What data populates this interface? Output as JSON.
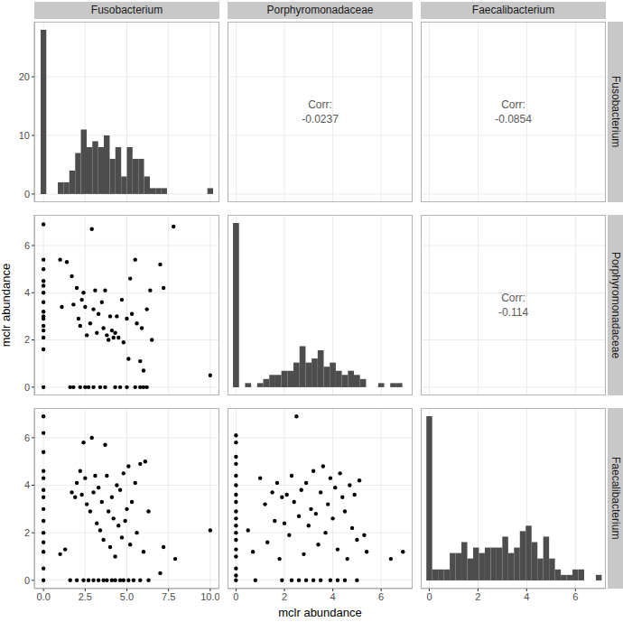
{
  "x_label": "mclr abundance",
  "y_label": "mclr abundance",
  "variables": [
    "Fusobacterium",
    "Porphyromonadaceae",
    "Faecalibacterium"
  ],
  "chart_data": [
    {
      "type": "histogram",
      "color": "#4d4d4d",
      "bins": [
        -0.17,
        0.17,
        0.52,
        0.86,
        1.21,
        1.55,
        1.9,
        2.24,
        2.59,
        2.93,
        3.28,
        3.62,
        3.97,
        4.31,
        4.66,
        5.0,
        5.34,
        5.69,
        6.03,
        6.38,
        6.72,
        7.07,
        7.41,
        7.76,
        8.1,
        8.45,
        8.79,
        9.14,
        9.48,
        9.83,
        10.17
      ],
      "counts": [
        28,
        0,
        0,
        2,
        2,
        4,
        7,
        11,
        8,
        9,
        8,
        10,
        6,
        8,
        3,
        8,
        6,
        6,
        3,
        1,
        1,
        1,
        0,
        0,
        0,
        0,
        0,
        0,
        0,
        1
      ],
      "xlim": [
        -0.55,
        10.55
      ],
      "xticks": [
        {
          "value": 0,
          "label": "0.0"
        },
        {
          "value": 2.5,
          "label": "2.5"
        },
        {
          "value": 5,
          "label": "5.0"
        },
        {
          "value": 7.5,
          "label": "7.5"
        },
        {
          "value": 10,
          "label": "10.0"
        }
      ],
      "ylim": [
        -1.4,
        29.4
      ],
      "yticks": [
        0,
        10,
        20
      ],
      "grid": true,
      "tick_labels": "y"
    },
    {
      "type": "text",
      "label": "Corr:",
      "value": -0.0237,
      "xlim": [
        -0.35,
        7.3
      ],
      "xticks": [
        0,
        2,
        4,
        6
      ],
      "ylim": [
        -1.4,
        29.4
      ],
      "yticks": [
        0,
        10,
        20
      ],
      "grid": true,
      "tick_labels": false
    },
    {
      "type": "text",
      "label": "Corr:",
      "value": -0.0854,
      "xlim": [
        -0.35,
        7.25
      ],
      "xticks": [
        0,
        2,
        4,
        6
      ],
      "ylim": [
        -1.4,
        29.4
      ],
      "yticks": [
        0,
        10,
        20
      ],
      "grid": true,
      "tick_labels": false
    },
    {
      "type": "scatter",
      "color": "#000000",
      "marker": "circle",
      "x": [
        0,
        0,
        0,
        0,
        0,
        0,
        0,
        0,
        0,
        0,
        0,
        0,
        0,
        0,
        0,
        1.0,
        1.1,
        1.4,
        1.7,
        1.8,
        2.0,
        2.1,
        2.2,
        2.3,
        2.4,
        2.5,
        2.6,
        2.8,
        2.9,
        3.0,
        3.1,
        3.2,
        3.3,
        3.5,
        3.6,
        3.7,
        3.8,
        3.9,
        4.0,
        4.1,
        4.2,
        4.3,
        4.4,
        4.5,
        4.7,
        4.8,
        5.0,
        5.1,
        5.2,
        5.3,
        5.5,
        5.6,
        5.8,
        5.9,
        6.0,
        6.2,
        6.4,
        6.5,
        7.0,
        7.2,
        7.8,
        10.0,
        1.6,
        1.8,
        2.2,
        2.5,
        2.7,
        3.0,
        3.4,
        3.7,
        4.3,
        4.6,
        5.0,
        5.5,
        5.8,
        6.0,
        6.2
      ],
      "y": [
        6.9,
        5.4,
        5.0,
        4.5,
        4.3,
        4.0,
        3.6,
        3.2,
        3.0,
        2.9,
        2.6,
        2.4,
        2.1,
        1.6,
        0,
        5.4,
        3.4,
        5.3,
        4.7,
        3.5,
        4.2,
        2.9,
        2.6,
        3.7,
        4.0,
        3.4,
        2.2,
        2.7,
        6.7,
        3.3,
        4.1,
        2.3,
        3.1,
        3.6,
        2.5,
        4.1,
        2.2,
        2.0,
        3.0,
        2.4,
        2.1,
        2.3,
        3.0,
        2.1,
        3.7,
        1.9,
        2.9,
        1.2,
        4.6,
        3.1,
        5.4,
        2.7,
        1.1,
        2.5,
        0.7,
        3.3,
        4.1,
        2.0,
        5.2,
        4.2,
        6.8,
        0.5,
        0,
        0,
        0,
        0,
        0,
        0,
        0,
        0,
        0,
        0,
        0,
        0,
        0,
        0,
        0
      ],
      "xlim": [
        -0.55,
        10.55
      ],
      "xticks": [
        {
          "value": 0,
          "label": "0.0"
        },
        {
          "value": 2.5,
          "label": "2.5"
        },
        {
          "value": 5,
          "label": "5.0"
        },
        {
          "value": 7.5,
          "label": "7.5"
        },
        {
          "value": 10,
          "label": "10.0"
        }
      ],
      "ylim": [
        -0.35,
        7.3
      ],
      "yticks": [
        0,
        2,
        4,
        6
      ],
      "grid": true,
      "tick_labels": "y"
    },
    {
      "type": "histogram",
      "color": "#4d4d4d",
      "bins": [
        -0.125,
        0.125,
        0.375,
        0.625,
        0.875,
        1.125,
        1.375,
        1.625,
        1.875,
        2.125,
        2.375,
        2.625,
        2.875,
        3.125,
        3.375,
        3.625,
        3.875,
        4.125,
        4.375,
        4.625,
        4.875,
        5.125,
        5.375,
        5.625,
        5.875,
        6.125,
        6.375,
        6.625,
        6.875,
        7.125,
        7.375
      ],
      "counts": [
        40,
        0,
        1,
        0,
        1,
        2,
        3,
        3,
        4,
        4,
        6,
        10,
        6,
        7,
        9,
        5,
        6,
        4,
        3,
        4,
        3,
        2,
        0,
        0,
        1,
        0,
        1,
        1,
        0,
        0
      ],
      "xlim": [
        -0.35,
        7.3
      ],
      "xticks": [
        0,
        2,
        4,
        6
      ],
      "ylim": [
        -2,
        42
      ],
      "grid": true,
      "tick_labels": false
    },
    {
      "type": "text",
      "label": "Corr:",
      "value": -0.114,
      "xlim": [
        -0.35,
        7.25
      ],
      "xticks": [
        0,
        2,
        4,
        6
      ],
      "ylim": [
        -0.35,
        7.3
      ],
      "yticks": [
        0,
        2,
        4,
        6
      ],
      "grid": true,
      "tick_labels": false
    },
    {
      "type": "scatter",
      "color": "#000000",
      "marker": "circle",
      "x": [
        0,
        0,
        0,
        0,
        0,
        0,
        0,
        0,
        0,
        0,
        0,
        0,
        0,
        0,
        1.0,
        1.3,
        1.7,
        1.9,
        2.0,
        2.2,
        2.3,
        2.4,
        2.5,
        2.6,
        2.8,
        2.9,
        3.0,
        3.1,
        3.2,
        3.3,
        3.4,
        3.5,
        3.6,
        3.7,
        3.8,
        3.9,
        4.0,
        4.1,
        4.2,
        4.3,
        4.4,
        4.5,
        4.6,
        4.7,
        4.8,
        4.9,
        5.0,
        5.1,
        5.2,
        5.3,
        5.5,
        5.6,
        5.8,
        6.0,
        6.1,
        6.3,
        7.0,
        7.2,
        7.9,
        10.0,
        1.6,
        2.0,
        2.4,
        2.7,
        3.0,
        3.3,
        3.6,
        3.8,
        4.1,
        4.3,
        4.6,
        4.8,
        5.1,
        5.4,
        5.8,
        6.3
      ],
      "y": [
        6.9,
        6.2,
        5.4,
        4.6,
        4.3,
        3.8,
        3.5,
        3.0,
        2.5,
        2.0,
        1.6,
        1.2,
        0.5,
        0,
        1.1,
        1.3,
        3.7,
        3.5,
        4.1,
        4.6,
        3.6,
        5.8,
        4.3,
        3.2,
        2.9,
        6.0,
        3.7,
        4.4,
        2.4,
        3.9,
        2.1,
        3.3,
        1.7,
        5.7,
        4.4,
        2.9,
        1.4,
        3.5,
        2.6,
        1.0,
        4.0,
        2.3,
        3.8,
        1.8,
        4.5,
        2.5,
        3.0,
        4.8,
        1.5,
        3.3,
        4.1,
        2.0,
        4.9,
        1.2,
        5.0,
        2.9,
        0.3,
        1.4,
        0.9,
        2.1,
        0,
        0,
        0,
        0,
        0,
        0,
        0,
        0,
        0,
        0,
        0,
        0,
        0,
        0,
        0,
        0
      ],
      "xlim": [
        -0.55,
        10.55
      ],
      "xticks": [
        {
          "value": 0,
          "label": "0.0"
        },
        {
          "value": 2.5,
          "label": "2.5"
        },
        {
          "value": 5,
          "label": "5.0"
        },
        {
          "value": 7.5,
          "label": "7.5"
        },
        {
          "value": 10,
          "label": "10.0"
        }
      ],
      "ylim": [
        -0.35,
        7.25
      ],
      "yticks": [
        0,
        2,
        4,
        6
      ],
      "grid": true
    },
    {
      "type": "scatter",
      "color": "#000000",
      "marker": "circle",
      "x": [
        0,
        0,
        0,
        0,
        0,
        0,
        0,
        0,
        0,
        0,
        0,
        0,
        0,
        0,
        0,
        0,
        0,
        0,
        0.5,
        0.7,
        1.0,
        1.2,
        1.3,
        1.5,
        1.6,
        1.7,
        1.8,
        1.9,
        2.0,
        2.1,
        2.2,
        2.3,
        2.4,
        2.5,
        2.6,
        2.7,
        2.8,
        2.9,
        3.0,
        3.1,
        3.2,
        3.3,
        3.4,
        3.5,
        3.6,
        3.7,
        3.8,
        3.9,
        4.0,
        4.1,
        4.2,
        4.3,
        4.4,
        4.5,
        4.6,
        4.7,
        4.8,
        4.9,
        5.0,
        5.1,
        5.3,
        5.4,
        6.4,
        6.9,
        0.8,
        1.9,
        2.3,
        2.6,
        2.9,
        3.2,
        3.5,
        3.9,
        4.2,
        4.5,
        5.0
      ],
      "y": [
        6.1,
        5.8,
        5.2,
        4.9,
        4.4,
        4.0,
        3.6,
        3.3,
        2.9,
        2.6,
        2.3,
        2.0,
        1.7,
        1.3,
        1.0,
        0.5,
        0.2,
        0,
        2.1,
        1.2,
        4.3,
        3.2,
        1.6,
        3.7,
        2.5,
        4.1,
        0.9,
        3.5,
        2.4,
        3.6,
        1.9,
        4.4,
        3.3,
        6.9,
        2.7,
        3.8,
        1.1,
        4.1,
        2.3,
        3.0,
        4.6,
        2.8,
        1.5,
        3.7,
        4.8,
        2.0,
        3.2,
        4.3,
        2.6,
        3.9,
        1.3,
        4.5,
        3.5,
        2.9,
        0.9,
        4.0,
        2.2,
        3.6,
        1.7,
        4.2,
        1.9,
        1.2,
        0.9,
        1.2,
        0,
        0,
        0,
        0,
        0,
        0,
        0,
        0,
        0,
        0,
        0
      ],
      "xlim": [
        -0.35,
        7.3
      ],
      "xticks": [
        0,
        2,
        4,
        6
      ],
      "ylim": [
        -0.35,
        7.25
      ],
      "yticks": [
        0,
        2,
        4,
        6
      ],
      "grid": true,
      "tick_labels": "x"
    },
    {
      "type": "histogram",
      "color": "#4d4d4d",
      "bins": [
        -0.12,
        0.12,
        0.36,
        0.6,
        0.84,
        1.08,
        1.32,
        1.56,
        1.8,
        2.04,
        2.28,
        2.52,
        2.76,
        3.0,
        3.24,
        3.48,
        3.72,
        3.96,
        4.2,
        4.44,
        4.68,
        4.92,
        5.16,
        5.4,
        5.64,
        5.88,
        6.12,
        6.36,
        6.6,
        6.84,
        7.08
      ],
      "counts": [
        30,
        2,
        2,
        2,
        5,
        5,
        7,
        4,
        6,
        5,
        6,
        6,
        6,
        8,
        5,
        6,
        9,
        10,
        7,
        4,
        8,
        4,
        2,
        1,
        1,
        2,
        2,
        0,
        0,
        1
      ],
      "xlim": [
        -0.35,
        7.25
      ],
      "xticks": [
        0,
        2,
        4,
        6
      ],
      "ylim": [
        -1.5,
        31.5
      ],
      "grid": true,
      "tick_labels": "x"
    }
  ]
}
